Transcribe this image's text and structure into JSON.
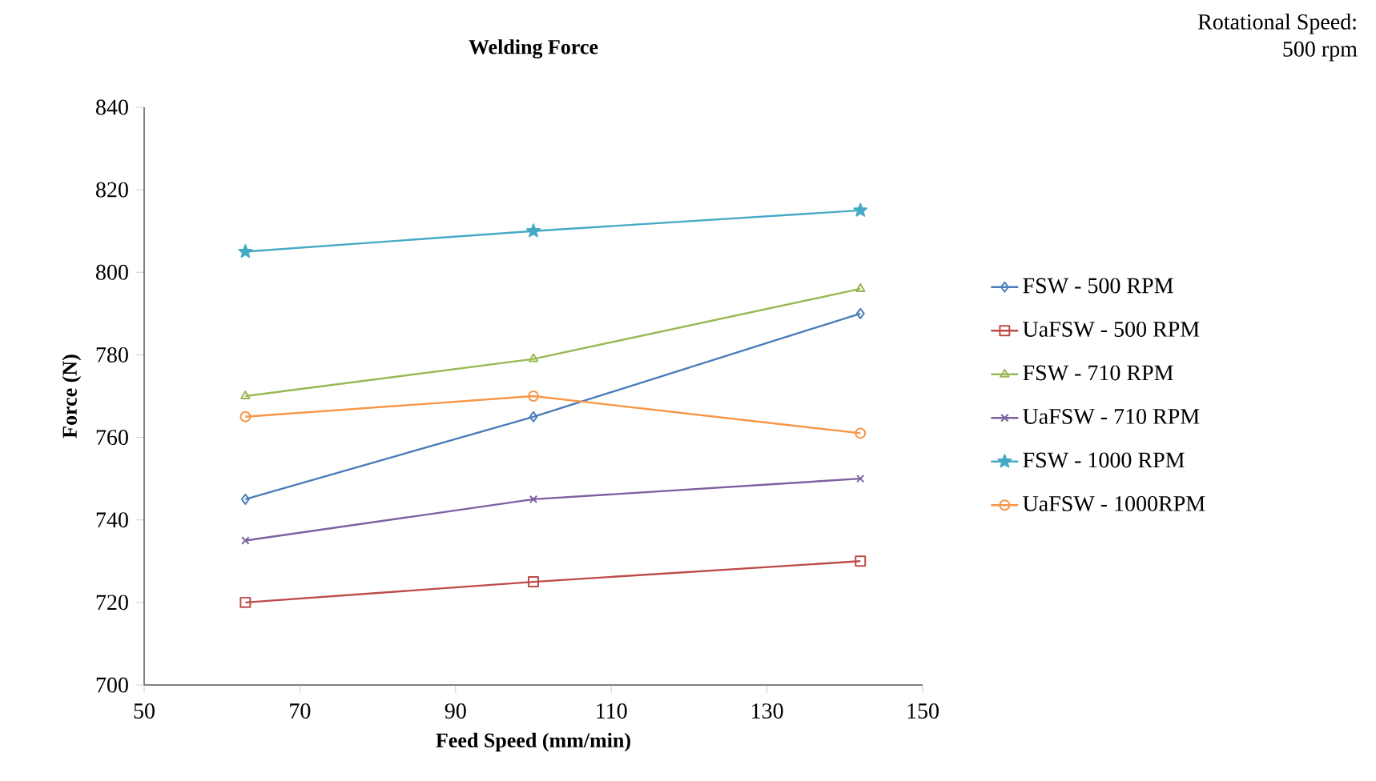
{
  "chart_data": {
    "type": "line",
    "title": "Welding Force",
    "xlabel": "Feed Speed (mm/min)",
    "ylabel": "Force (N)",
    "annotations": [
      "Rotational Speed: 500 rpm"
    ],
    "x": [
      63,
      100,
      142
    ],
    "xlim": [
      50,
      150
    ],
    "xticks": [
      50,
      70,
      90,
      110,
      130,
      150
    ],
    "ylim": [
      700,
      840
    ],
    "yticks": [
      700,
      720,
      740,
      760,
      780,
      800,
      820,
      840
    ],
    "grid": false,
    "legend": "right",
    "series": [
      {
        "name": "FSW - 500 RPM",
        "color": "#4a7ebb",
        "marker": "diamond",
        "values": [
          745,
          765,
          790
        ]
      },
      {
        "name": "UaFSW - 500 RPM",
        "color": "#be4b48",
        "marker": "square",
        "values": [
          720,
          725,
          730
        ]
      },
      {
        "name": "FSW - 710 RPM",
        "color": "#98b954",
        "marker": "triangle",
        "values": [
          770,
          779,
          796
        ]
      },
      {
        "name": "UaFSW - 710 RPM",
        "color": "#7d60a0",
        "marker": "cross",
        "values": [
          735,
          745,
          750
        ]
      },
      {
        "name": "FSW - 1000 RPM",
        "color": "#46aac5",
        "marker": "star",
        "values": [
          805,
          810,
          815
        ]
      },
      {
        "name": "UaFSW - 1000RPM",
        "color": "#f79646",
        "marker": "circle",
        "values": [
          765,
          770,
          761
        ]
      }
    ]
  }
}
